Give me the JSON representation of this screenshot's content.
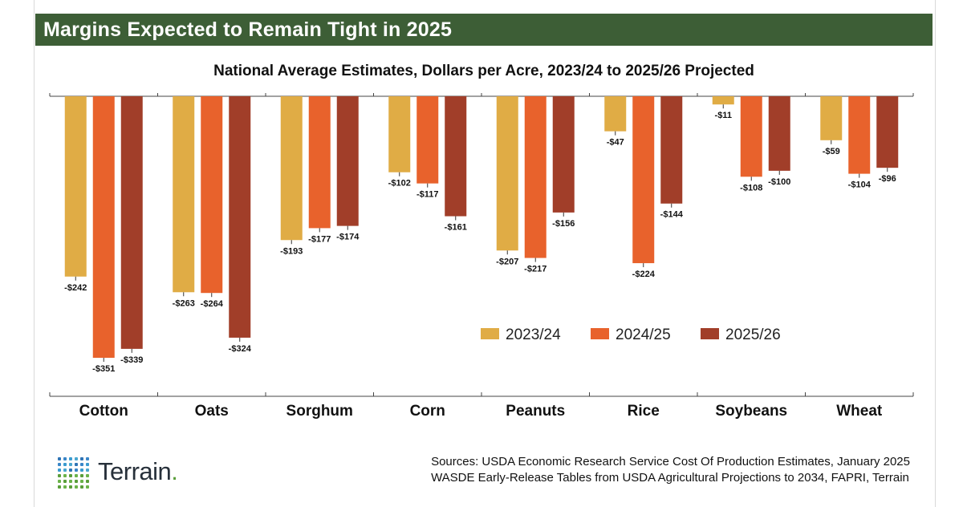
{
  "banner": {
    "title": "Margins Expected to Remain Tight in 2025"
  },
  "colors": {
    "banner": "#3d5e36",
    "s2023": "#e0ac45",
    "s2024": "#e8622c",
    "s2025": "#a13e29"
  },
  "chart_data": {
    "type": "bar",
    "title": "National Average Estimates, Dollars per Acre, 2023/24 to 2025/26 Projected",
    "xlabel": "",
    "ylabel": "",
    "ylim": [
      -400,
      0
    ],
    "grid": false,
    "legend_position": "bottom-right",
    "categories": [
      "Cotton",
      "Oats",
      "Sorghum",
      "Corn",
      "Peanuts",
      "Rice",
      "Soybeans",
      "Wheat"
    ],
    "series": [
      {
        "name": "2023/24",
        "color": "#e0ac45",
        "values": [
          -242,
          -263,
          -193,
          -102,
          -207,
          -47,
          -11,
          -59
        ],
        "labels": [
          "-$242",
          "-$263",
          "-$193",
          "-$102",
          "-$207",
          "-$47",
          "-$11",
          "-$59"
        ]
      },
      {
        "name": "2024/25",
        "color": "#e8622c",
        "values": [
          -351,
          -264,
          -177,
          -117,
          -217,
          -224,
          -108,
          -104
        ],
        "labels": [
          "-$351",
          "-$264",
          "-$177",
          "-$117",
          "-$217",
          "-$224",
          "-$108",
          "-$104"
        ]
      },
      {
        "name": "2025/26",
        "color": "#a13e29",
        "values": [
          -339,
          -324,
          -174,
          -161,
          -156,
          -144,
          -100,
          -96
        ],
        "labels": [
          "-$339",
          "-$324",
          "-$174",
          "-$161",
          "-$156",
          "-$144",
          "-$100",
          "-$96"
        ]
      }
    ]
  },
  "footer": {
    "sources_line1": "Sources: USDA Economic Research Service Cost Of Production Estimates, January 2025",
    "sources_line2": "WASDE Early-Release Tables from USDA Agricultural Projections to 2034, FAPRI, Terrain",
    "logo_text": "Terrain",
    "logo_dot": ".",
    "logo_icon": "dot-grid-icon"
  }
}
